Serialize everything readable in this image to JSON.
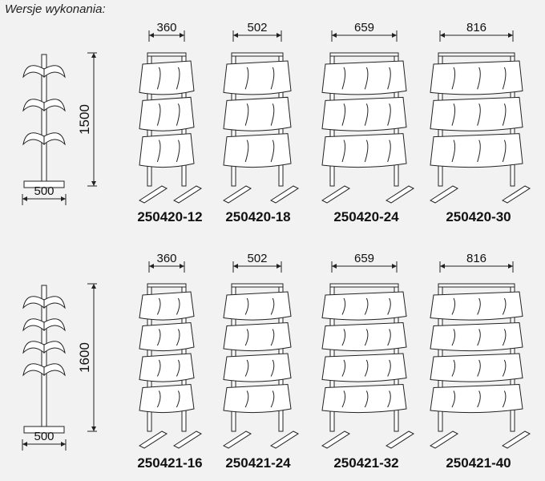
{
  "title": "Wersje wykonania:",
  "rows": [
    {
      "height_label": "1500",
      "base_label": "500",
      "tiers": 3,
      "models": [
        {
          "width_label": "360",
          "code": "250420-12"
        },
        {
          "width_label": "502",
          "code": "250420-18"
        },
        {
          "width_label": "659",
          "code": "250420-24"
        },
        {
          "width_label": "816",
          "code": "250420-30"
        }
      ]
    },
    {
      "height_label": "1600",
      "base_label": "500",
      "tiers": 4,
      "models": [
        {
          "width_label": "360",
          "code": "250421-16"
        },
        {
          "width_label": "502",
          "code": "250421-24"
        },
        {
          "width_label": "659",
          "code": "250421-32"
        },
        {
          "width_label": "816",
          "code": "250421-40"
        }
      ]
    }
  ]
}
